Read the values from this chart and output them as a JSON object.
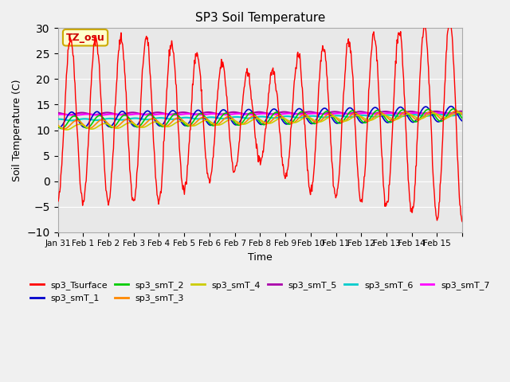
{
  "title": "SP3 Soil Temperature",
  "xlabel": "Time",
  "ylabel": "Soil Temperature (C)",
  "ylim": [
    -10,
    30
  ],
  "annotation_text": "TZ_osu",
  "annotation_color": "#cc0000",
  "annotation_bg": "#ffffcc",
  "annotation_border": "#ccaa00",
  "series_colors": {
    "sp3_Tsurface": "#ff0000",
    "sp3_smT_1": "#0000cc",
    "sp3_smT_2": "#00cc00",
    "sp3_smT_3": "#ff8800",
    "sp3_smT_4": "#cccc00",
    "sp3_smT_5": "#aa00aa",
    "sp3_smT_6": "#00cccc",
    "sp3_smT_7": "#ff00ff"
  },
  "fig_bg_color": "#f0f0f0",
  "plot_bg_color": "#e8e8e8",
  "grid_color": "#ffffff",
  "n_points": 800
}
